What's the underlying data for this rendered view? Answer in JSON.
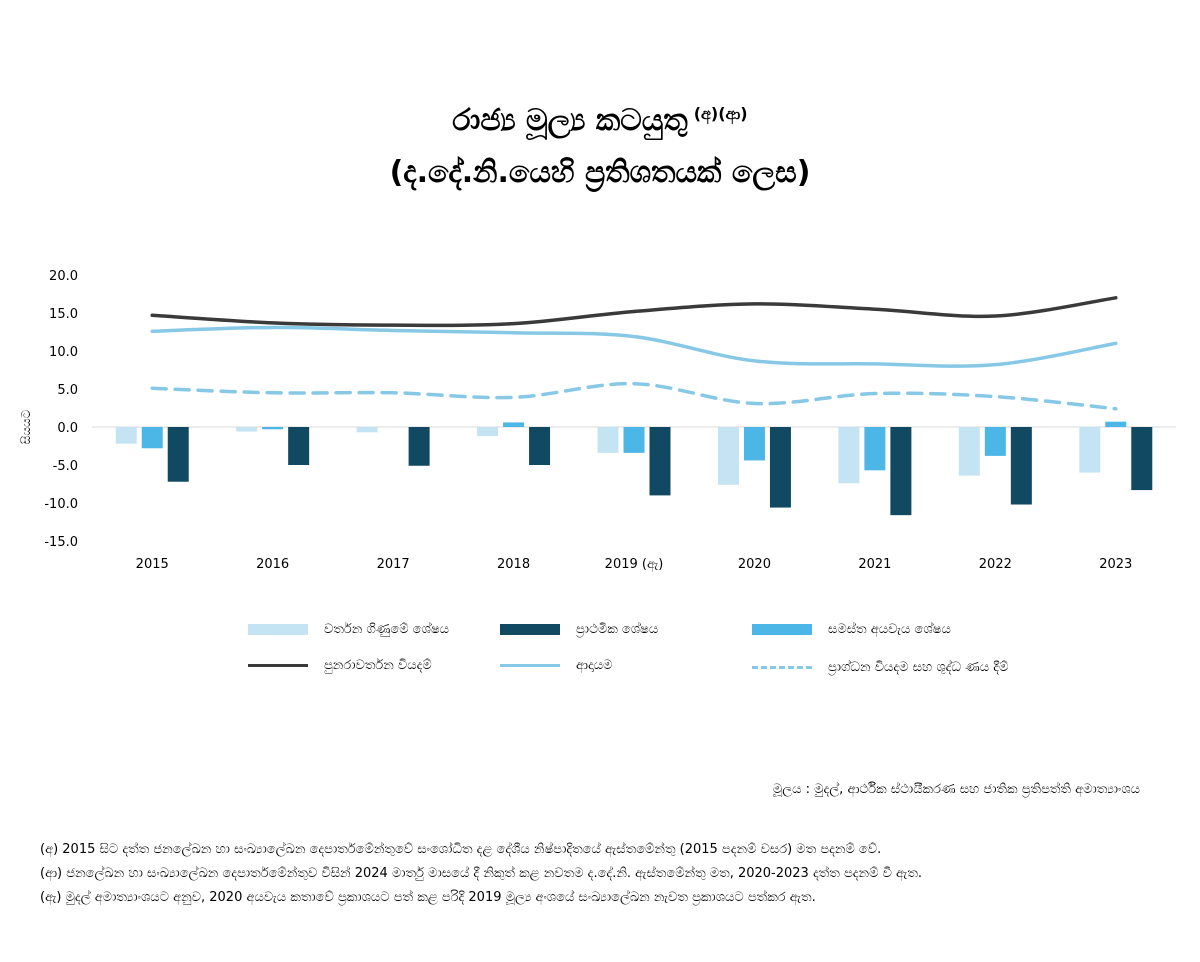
{
  "title": {
    "line1": "රාජ්‍ය මූල්‍ය කටයුතු",
    "line1_sup": "(අ)(ආ)",
    "line2": "(ද.දේ.නි.යෙහි ප්‍රතිශතයක් ලෙස)"
  },
  "colors": {
    "current_balance": "#c5e4f3",
    "primary_balance": "#114862",
    "overall_balance": "#4cb6e6",
    "recurrent_expenditure": "#3a3a3a",
    "revenue": "#86c8e6",
    "capital_expenditure": "#86c8e6"
  },
  "legend": {
    "current_balance": "වර්තන ගිණුමේ ශේෂය",
    "primary_balance": "ප්‍රාථමික ශේෂය",
    "overall_balance": "සමස්ත අයවැය ශේෂය",
    "recurrent_expenditure": "පුනරාවර්තන වියදම්",
    "revenue": "ආදායම",
    "capital_expenditure": "ප්‍රාග්ධන වියදම සහ ශුද්ධ ණය දීම්"
  },
  "source": "මූලය :  මුදල්, ආර්ථික ස්ථායීකරණ සහ ජාතික ප්‍රතිපත්ති අමාත්‍යාංශය",
  "notes": [
    "(අ) 2015 සිට දත්ත ජනලේඛන හා සංඛ්‍යාලේඛන දෙපාර්තමේන්තුවේ සංශෝධිත දළ දේශීය නිෂ්පාදිතයේ ඇස්තමේන්තු (2015 පදනම් වසර) මත පදනම් වේ.",
    "(ආ) ජනලේඛන හා සංඛ්‍යාලේඛන දෙපාර්තමේන්තුව විසින් 2024 මාර්තු මාසයේ දී නිකුත් කළ නවතම ද.දේ.නි. ඇස්තමේන්තු මත, 2020-2023 දත්ත පදනම් වී ඇත.",
    "(ඇ) මුදල් අමාත්‍යාංශයට අනුව, 2020 අයවැය කතාවේ ප්‍රකාශයට පත් කළ පරිදි 2019 මූල්‍ය අංශයේ සංඛ්‍යාලේඛන නැවත ප්‍රකාශයට පත්කර ඇත."
  ],
  "chart_data": {
    "type": "bar",
    "categories": [
      "2015",
      "2016",
      "2017",
      "2018",
      "2019 (ඇ)",
      "2020",
      "2021",
      "2022",
      "2023"
    ],
    "ylabel": "සියයට",
    "ylim": [
      -15,
      20
    ],
    "yticks": [
      "20.0",
      "15.0",
      "10.0",
      "5.0",
      "0.0",
      "-5.0",
      "-10.0",
      "-15.0"
    ],
    "ytick_values": [
      20,
      15,
      10,
      5,
      0,
      -5,
      -10,
      -15
    ],
    "grid": false,
    "legend_position": "bottom",
    "bar_series": [
      {
        "key": "current_balance",
        "values": [
          -2.2,
          -0.6,
          -0.7,
          -1.2,
          -3.4,
          -7.6,
          -7.4,
          -6.4,
          -6.0
        ]
      },
      {
        "key": "overall_balance",
        "values": [
          -2.8,
          -0.3,
          0.0,
          0.6,
          -3.4,
          -4.4,
          -5.7,
          -3.8,
          0.7
        ]
      },
      {
        "key": "primary_balance",
        "values": [
          -7.2,
          -5.0,
          -5.1,
          -5.0,
          -9.0,
          -10.6,
          -11.6,
          -10.2,
          -8.3
        ]
      }
    ],
    "line_series": [
      {
        "key": "recurrent_expenditure",
        "style": "solid",
        "values": [
          14.7,
          13.7,
          13.4,
          13.6,
          15.2,
          16.2,
          15.5,
          14.6,
          17.0
        ]
      },
      {
        "key": "revenue",
        "style": "solid",
        "values": [
          12.6,
          13.1,
          12.7,
          12.4,
          11.9,
          8.7,
          8.3,
          8.2,
          11.0
        ]
      },
      {
        "key": "capital_expenditure",
        "style": "dashed",
        "values": [
          5.1,
          4.5,
          4.5,
          3.9,
          5.7,
          3.1,
          4.4,
          4.0,
          2.4
        ]
      }
    ]
  }
}
